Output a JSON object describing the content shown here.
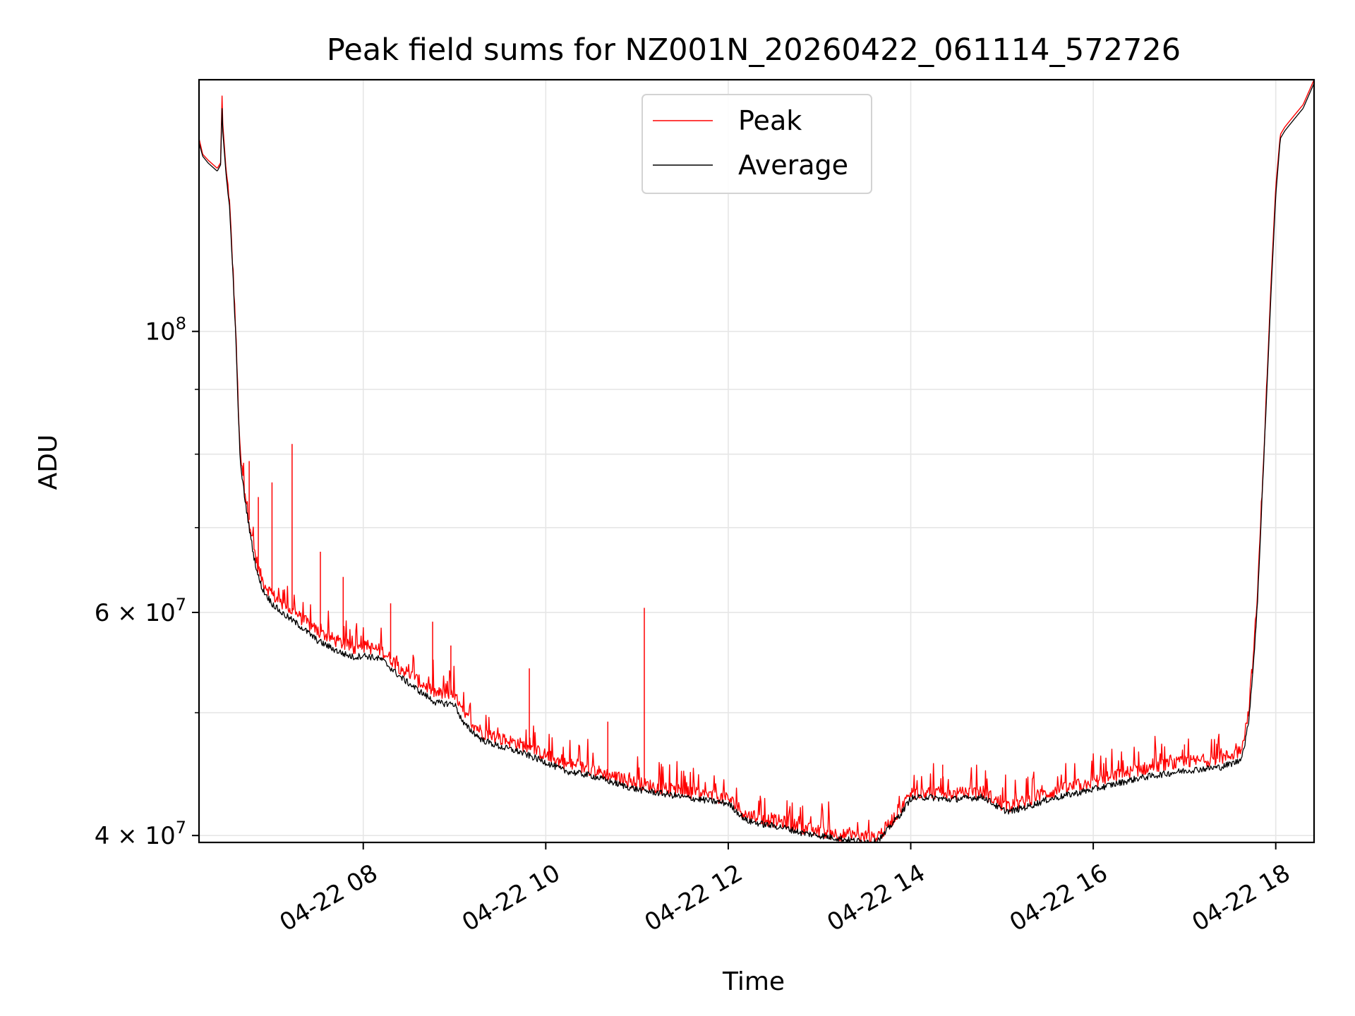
{
  "chart_data": {
    "type": "line",
    "title": "Peak field sums for NZ001N_20260422_061114_572726",
    "xlabel": "Time",
    "ylabel": "ADU",
    "yscale": "log",
    "ylim": [
      39500000,
      158000000
    ],
    "xlim_hours": [
      6.2,
      18.42
    ],
    "grid": true,
    "legend_placement": "upper-center",
    "x_ticks": [
      {
        "hour": 8,
        "label": "04-22 08"
      },
      {
        "hour": 10,
        "label": "04-22 10"
      },
      {
        "hour": 12,
        "label": "04-22 12"
      },
      {
        "hour": 14,
        "label": "04-22 14"
      },
      {
        "hour": 16,
        "label": "04-22 16"
      },
      {
        "hour": 18,
        "label": "04-22 18"
      }
    ],
    "y_major_ticks": [
      {
        "value": 40000000,
        "base": "4 × 10",
        "exp": "7"
      },
      {
        "value": 60000000,
        "base": "6 × 10",
        "exp": "7"
      },
      {
        "value": 100000000,
        "base": "10",
        "exp": "8"
      }
    ],
    "y_minor_ticks": [
      50000000,
      70000000,
      80000000,
      90000000
    ],
    "series": [
      {
        "name": "Peak",
        "color": "#ff0000",
        "x_hours": [
          6.2,
          6.24,
          6.3,
          6.4,
          6.44,
          6.45,
          6.46,
          6.5,
          6.53,
          6.58,
          6.6,
          6.62,
          6.65,
          6.7,
          6.75,
          6.8,
          6.85,
          6.9,
          7.0,
          7.1,
          7.2,
          7.3,
          7.5,
          7.7,
          7.8,
          7.9,
          8.0,
          8.2,
          8.4,
          8.6,
          8.8,
          9.0,
          9.1,
          9.3,
          9.5,
          9.7,
          10.0,
          10.2,
          10.5,
          10.8,
          11.0,
          11.5,
          12.0,
          12.2,
          12.4,
          12.6,
          12.8,
          13.0,
          13.2,
          13.4,
          13.6,
          13.7,
          13.8,
          13.9,
          14.0,
          14.2,
          14.4,
          14.6,
          14.8,
          15.0,
          15.1,
          15.3,
          15.5,
          16.0,
          16.5,
          17.0,
          17.4,
          17.6,
          17.65,
          17.7,
          17.75,
          17.8,
          17.85,
          17.9,
          17.95,
          18.0,
          18.05,
          18.1,
          18.15,
          18.2,
          18.3,
          18.42
        ],
        "values": [
          142000000,
          138000000,
          136500000,
          134500000,
          136000000,
          156000000,
          146000000,
          133000000,
          128000000,
          109000000,
          101000000,
          92000000,
          80000000,
          75000000,
          71000000,
          67500000,
          65000000,
          63500000,
          62000000,
          61000000,
          60300000,
          59500000,
          58000000,
          57000000,
          56600000,
          56200000,
          56400000,
          56000000,
          54300000,
          53000000,
          51800000,
          51600000,
          49800000,
          48300000,
          47700000,
          47300000,
          46300000,
          45600000,
          45100000,
          44400000,
          44000000,
          43300000,
          42800000,
          41500000,
          41200000,
          41000000,
          40600000,
          40300000,
          40100000,
          39900000,
          39800000,
          40300000,
          41200000,
          42000000,
          43200000,
          43300000,
          43100000,
          43200000,
          43300000,
          42300000,
          42200000,
          42700000,
          43200000,
          44100000,
          45100000,
          45700000,
          46000000,
          46600000,
          47800000,
          50000000,
          55000000,
          62000000,
          75000000,
          90000000,
          110000000,
          130000000,
          143000000,
          145000000,
          146500000,
          148000000,
          151000000,
          158000000
        ]
      },
      {
        "name": "Average",
        "color": "#000000",
        "x_hours": [
          6.2,
          6.24,
          6.3,
          6.4,
          6.44,
          6.45,
          6.46,
          6.5,
          6.53,
          6.58,
          6.6,
          6.62,
          6.65,
          6.7,
          6.75,
          6.8,
          6.85,
          6.9,
          7.0,
          7.1,
          7.2,
          7.3,
          7.5,
          7.7,
          7.8,
          7.9,
          8.0,
          8.2,
          8.4,
          8.6,
          8.8,
          9.0,
          9.1,
          9.3,
          9.5,
          9.7,
          10.0,
          10.2,
          10.5,
          10.8,
          11.0,
          11.5,
          12.0,
          12.2,
          12.4,
          12.6,
          12.8,
          13.0,
          13.2,
          13.4,
          13.6,
          13.7,
          13.8,
          13.9,
          14.0,
          14.2,
          14.4,
          14.6,
          14.8,
          15.0,
          15.1,
          15.3,
          15.5,
          16.0,
          16.5,
          17.0,
          17.4,
          17.6,
          17.65,
          17.7,
          17.75,
          17.8,
          17.85,
          17.9,
          17.95,
          18.0,
          18.05,
          18.1,
          18.15,
          18.2,
          18.3,
          18.42
        ],
        "values": [
          141000000,
          137500000,
          135800000,
          133800000,
          135500000,
          152000000,
          144000000,
          132000000,
          127000000,
          108000000,
          100000000,
          91000000,
          79000000,
          74000000,
          70000000,
          66500000,
          64000000,
          62500000,
          61000000,
          60000000,
          59300000,
          58600000,
          57000000,
          56000000,
          55600000,
          55300000,
          55500000,
          55100000,
          53400000,
          52100000,
          50900000,
          50800000,
          49000000,
          47600000,
          47000000,
          46600000,
          45700000,
          45000000,
          44600000,
          43900000,
          43500000,
          42900000,
          42400000,
          41100000,
          40800000,
          40600000,
          40200000,
          40000000,
          39800000,
          39600000,
          39550000,
          40000000,
          40900000,
          41700000,
          42800000,
          42900000,
          42700000,
          42800000,
          42900000,
          41900000,
          41800000,
          42200000,
          42700000,
          43500000,
          44400000,
          45000000,
          45300000,
          45800000,
          46800000,
          49000000,
          54000000,
          61000000,
          74000000,
          89000000,
          108000000,
          128000000,
          142000000,
          144000000,
          145500000,
          147000000,
          150000000,
          157000000
        ]
      }
    ],
    "peak_spikes": [
      {
        "hour": 6.75,
        "value": 79000000
      },
      {
        "hour": 6.85,
        "value": 74000000
      },
      {
        "hour": 7.0,
        "value": 76000000
      },
      {
        "hour": 7.22,
        "value": 81500000
      },
      {
        "hour": 7.53,
        "value": 67000000
      },
      {
        "hour": 7.78,
        "value": 64000000
      },
      {
        "hour": 8.3,
        "value": 61000000
      },
      {
        "hour": 8.76,
        "value": 59000000
      },
      {
        "hour": 8.96,
        "value": 56500000
      },
      {
        "hour": 9.82,
        "value": 54200000
      },
      {
        "hour": 10.68,
        "value": 49200000
      },
      {
        "hour": 11.08,
        "value": 60500000
      },
      {
        "hour": 14.35,
        "value": 45500000
      },
      {
        "hour": 17.0,
        "value": 47200000
      }
    ]
  }
}
